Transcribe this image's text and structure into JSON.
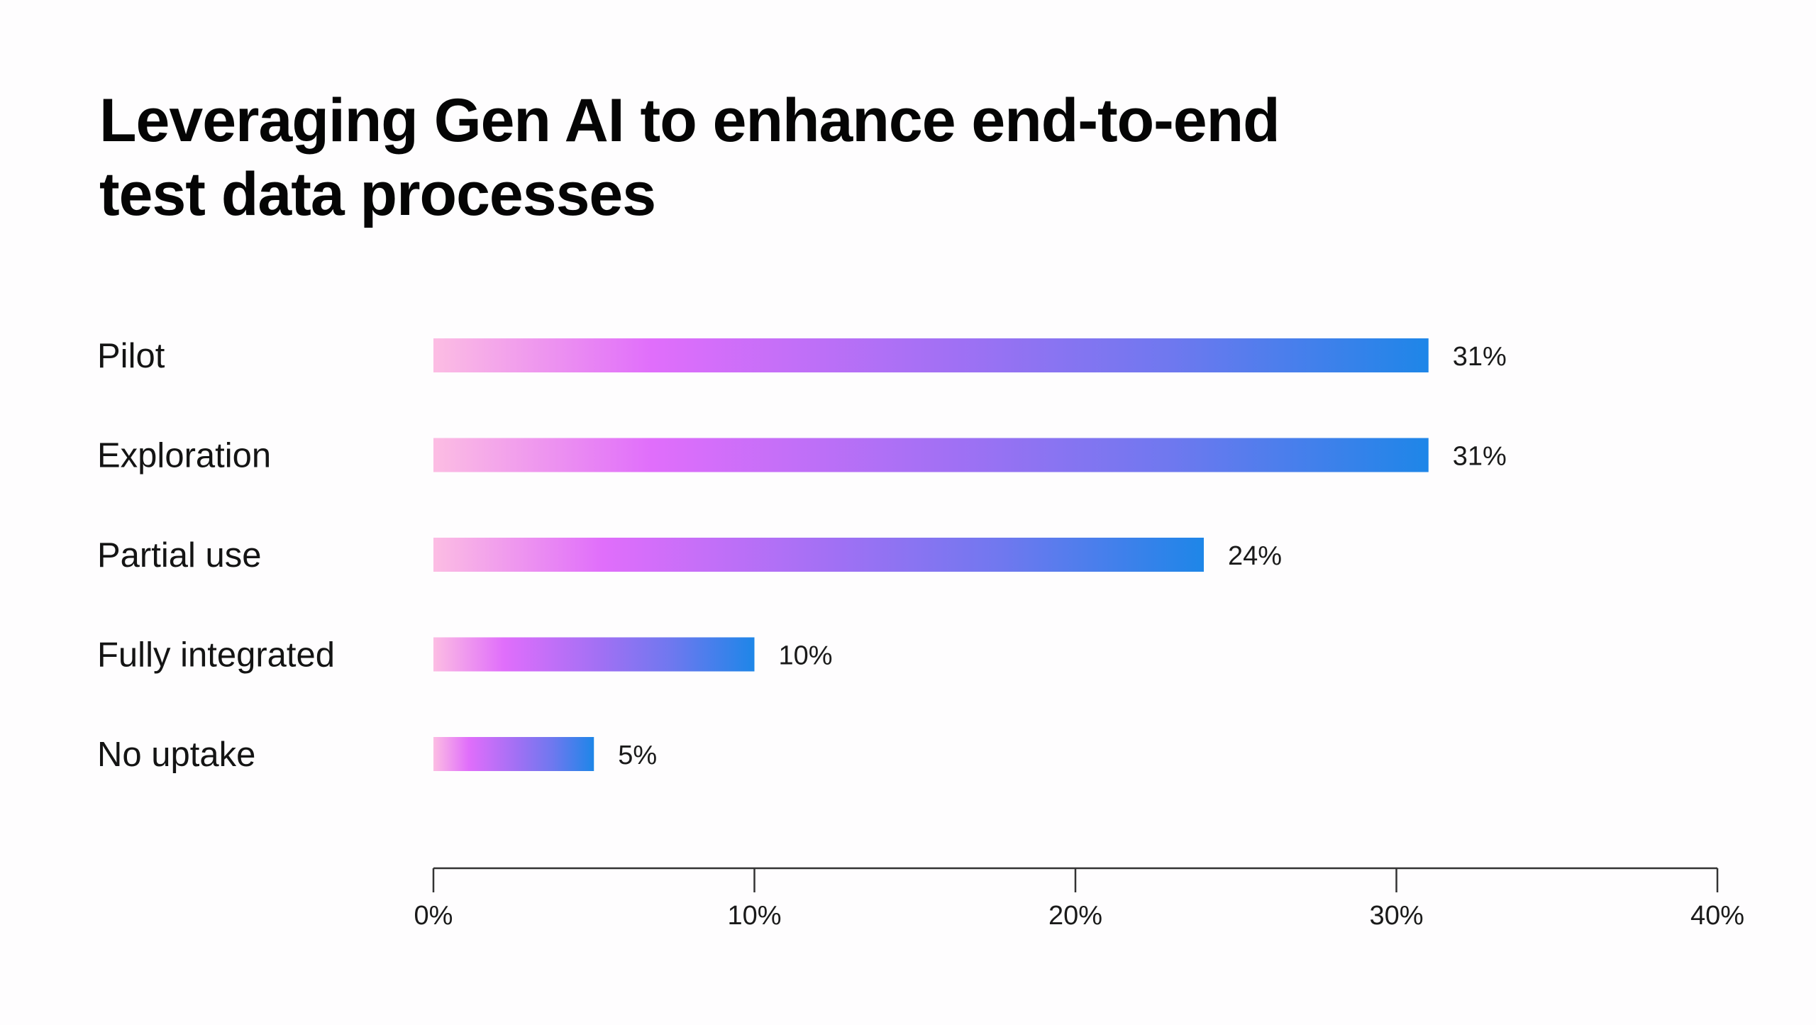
{
  "chart_data": {
    "type": "bar",
    "orientation": "horizontal",
    "title": "Leveraging Gen AI to enhance end-to-end test data processes",
    "title_lines": [
      "Leveraging Gen AI to enhance end-to-end",
      "test data processes"
    ],
    "categories": [
      "Pilot",
      "Exploration",
      "Partial use",
      "Fully integrated",
      "No uptake"
    ],
    "values": [
      31,
      31,
      24,
      10,
      5
    ],
    "value_labels": [
      "31%",
      "31%",
      "24%",
      "10%",
      "5%"
    ],
    "unit": "%",
    "xlabel": "",
    "ylabel": "",
    "xlim": [
      0,
      40
    ],
    "x_ticks": [
      0,
      10,
      20,
      30,
      40
    ],
    "x_tick_labels": [
      "0%",
      "10%",
      "20%",
      "30%",
      "40%"
    ],
    "grid": false,
    "legend": "none",
    "bar_gradient": [
      "#fcbde3",
      "#e06efb",
      "#a170f4",
      "#6f78ef",
      "#1e86e8"
    ]
  }
}
